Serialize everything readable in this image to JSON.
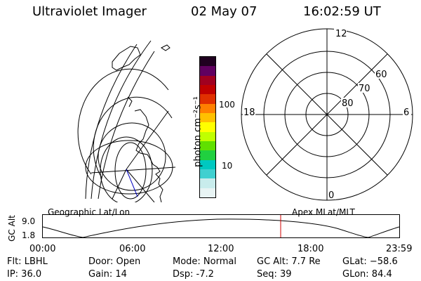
{
  "header": {
    "instrument": "Ultraviolet Imager",
    "date": "02 May 07",
    "time": "16:02:59 UT"
  },
  "colorbar": {
    "title": "photon cm⁻²s⁻¹",
    "tick_high": "100",
    "tick_low": "10",
    "colors": [
      "#e8f4f4",
      "#c8ecec",
      "#40d0d0",
      "#00c8c0",
      "#20d040",
      "#60e000",
      "#c0ff00",
      "#ffff00",
      "#ffc000",
      "#ff8000",
      "#e03000",
      "#c00000",
      "#a00020",
      "#600060",
      "#200020"
    ]
  },
  "polar": {
    "lat_labels": [
      "80",
      "70",
      "60"
    ],
    "mlt_labels": {
      "top": "12",
      "bottom": "0",
      "left": "18",
      "right": "6"
    }
  },
  "orbit": {
    "title_left": "Geographic Lat/Lon",
    "title_right": "Apex MLat/MLT",
    "axis_label": "GC Alt",
    "ytick_top": "9.0",
    "ytick_bottom": "1.8",
    "xticks": [
      "00:00",
      "06:00",
      "12:00",
      "18:00",
      "23:59"
    ],
    "current_time_color": "#d00000"
  },
  "status": {
    "filter": "Flt: LBHL",
    "ip": "IP: 36.0",
    "door": "Door: Open",
    "gain": "Gain: 14",
    "mode": "Mode: Normal",
    "dsp": "Dsp:   -7.2",
    "gc_alt": "GC Alt: 7.7 Re",
    "seq": "Seq: 39",
    "glat": "GLat: −58.6",
    "glon": "GLon:  84.4"
  }
}
